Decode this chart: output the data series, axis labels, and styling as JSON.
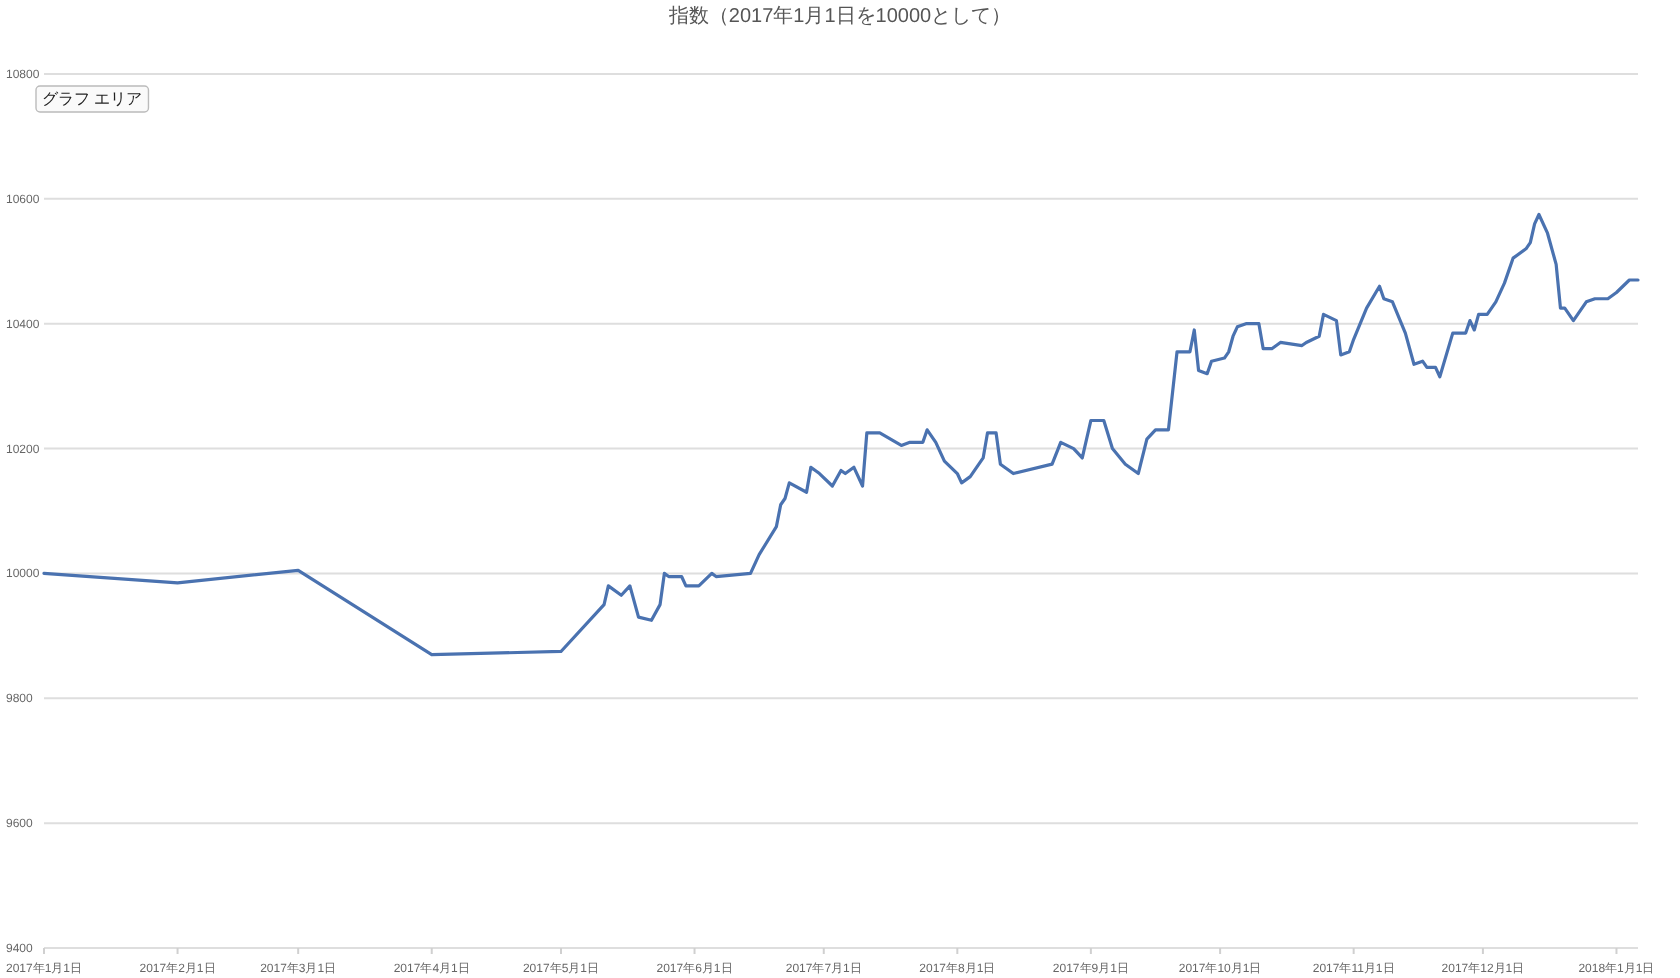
{
  "chart_data": {
    "type": "line",
    "title": "指数（2017年1月1日を10000として）",
    "annotations": [
      "グラフ エリア"
    ],
    "series": [
      {
        "color": "#4a72b0",
        "x": [
          "2017-01-01",
          "2017-02-01",
          "2017-03-01",
          "2017-04-01",
          "2017-05-01",
          "2017-05-11",
          "2017-05-12",
          "2017-05-15",
          "2017-05-17",
          "2017-05-19",
          "2017-05-22",
          "2017-05-24",
          "2017-05-25",
          "2017-05-26",
          "2017-05-29",
          "2017-05-30",
          "2017-06-02",
          "2017-06-05",
          "2017-06-06",
          "2017-06-14",
          "2017-06-16",
          "2017-06-20",
          "2017-06-21",
          "2017-06-22",
          "2017-06-23",
          "2017-06-27",
          "2017-06-28",
          "2017-06-30",
          "2017-07-03",
          "2017-07-05",
          "2017-07-06",
          "2017-07-08",
          "2017-07-10",
          "2017-07-11",
          "2017-07-14",
          "2017-07-19",
          "2017-07-21",
          "2017-07-24",
          "2017-07-25",
          "2017-07-27",
          "2017-07-29",
          "2017-08-01",
          "2017-08-02",
          "2017-08-04",
          "2017-08-07",
          "2017-08-08",
          "2017-08-10",
          "2017-08-11",
          "2017-08-14",
          "2017-08-23",
          "2017-08-25",
          "2017-08-28",
          "2017-08-30",
          "2017-09-01",
          "2017-09-04",
          "2017-09-06",
          "2017-09-09",
          "2017-09-12",
          "2017-09-14",
          "2017-09-16",
          "2017-09-19",
          "2017-09-21",
          "2017-09-22",
          "2017-09-24",
          "2017-09-25",
          "2017-09-26",
          "2017-09-28",
          "2017-09-29",
          "2017-10-02",
          "2017-10-03",
          "2017-10-04",
          "2017-10-05",
          "2017-10-07",
          "2017-10-10",
          "2017-10-11",
          "2017-10-13",
          "2017-10-15",
          "2017-10-20",
          "2017-10-21",
          "2017-10-24",
          "2017-10-25",
          "2017-10-28",
          "2017-10-29",
          "2017-10-31",
          "2017-11-01",
          "2017-11-04",
          "2017-11-07",
          "2017-11-08",
          "2017-11-10",
          "2017-11-13",
          "2017-11-15",
          "2017-11-17",
          "2017-11-18",
          "2017-11-20",
          "2017-11-21",
          "2017-11-24",
          "2017-11-27",
          "2017-11-28",
          "2017-11-29",
          "2017-11-30",
          "2017-12-02",
          "2017-12-04",
          "2017-12-06",
          "2017-12-08",
          "2017-12-11",
          "2017-12-12",
          "2017-12-13",
          "2017-12-14",
          "2017-12-16",
          "2017-12-18",
          "2017-12-19",
          "2017-12-20",
          "2017-12-22",
          "2017-12-25",
          "2017-12-27",
          "2017-12-30",
          "2018-01-01",
          "2018-01-04",
          "2018-01-06"
        ],
        "values": [
          10000,
          9985,
          10005,
          9870,
          9875,
          9950,
          9980,
          9965,
          9980,
          9930,
          9925,
          9950,
          10000,
          9995,
          9995,
          9980,
          9980,
          10000,
          9995,
          10000,
          10030,
          10075,
          10110,
          10120,
          10145,
          10130,
          10170,
          10160,
          10140,
          10165,
          10160,
          10170,
          10140,
          10225,
          10225,
          10205,
          10210,
          10210,
          10230,
          10210,
          10180,
          10160,
          10145,
          10155,
          10185,
          10225,
          10225,
          10175,
          10160,
          10175,
          10210,
          10200,
          10185,
          10245,
          10245,
          10200,
          10175,
          10160,
          10215,
          10230,
          10230,
          10355,
          10355,
          10355,
          10390,
          10325,
          10320,
          10340,
          10345,
          10355,
          10380,
          10395,
          10400,
          10400,
          10360,
          10360,
          10370,
          10365,
          10370,
          10380,
          10415,
          10405,
          10350,
          10355,
          10375,
          10425,
          10460,
          10440,
          10435,
          10385,
          10335,
          10340,
          10330,
          10330,
          10315,
          10385,
          10385,
          10405,
          10390,
          10415,
          10415,
          10435,
          10465,
          10505,
          10520,
          10530,
          10560,
          10575,
          10545,
          10495,
          10425,
          10425,
          10405,
          10435,
          10440,
          10440,
          10450,
          10470,
          10470
        ]
      }
    ],
    "xlim": [
      "2017-01-01",
      "2018-01-06"
    ],
    "xticks": [
      {
        "value": "2017-01-01",
        "label": "2017年1月1日"
      },
      {
        "value": "2017-02-01",
        "label": "2017年2月1日"
      },
      {
        "value": "2017-03-01",
        "label": "2017年3月1日"
      },
      {
        "value": "2017-04-01",
        "label": "2017年4月1日"
      },
      {
        "value": "2017-05-01",
        "label": "2017年5月1日"
      },
      {
        "value": "2017-06-01",
        "label": "2017年6月1日"
      },
      {
        "value": "2017-07-01",
        "label": "2017年7月1日"
      },
      {
        "value": "2017-08-01",
        "label": "2017年8月1日"
      },
      {
        "value": "2017-09-01",
        "label": "2017年9月1日"
      },
      {
        "value": "2017-10-01",
        "label": "2017年10月1日"
      },
      {
        "value": "2017-11-01",
        "label": "2017年11月1日"
      },
      {
        "value": "2017-12-01",
        "label": "2017年12月1日"
      },
      {
        "value": "2018-01-01",
        "label": "2018年1月1日"
      }
    ],
    "ylim": [
      9400,
      10800
    ],
    "yticks": [
      9400,
      9600,
      9800,
      10000,
      10200,
      10400,
      10600,
      10800
    ],
    "grid": "y",
    "marker": "none",
    "line_style": "solid"
  }
}
